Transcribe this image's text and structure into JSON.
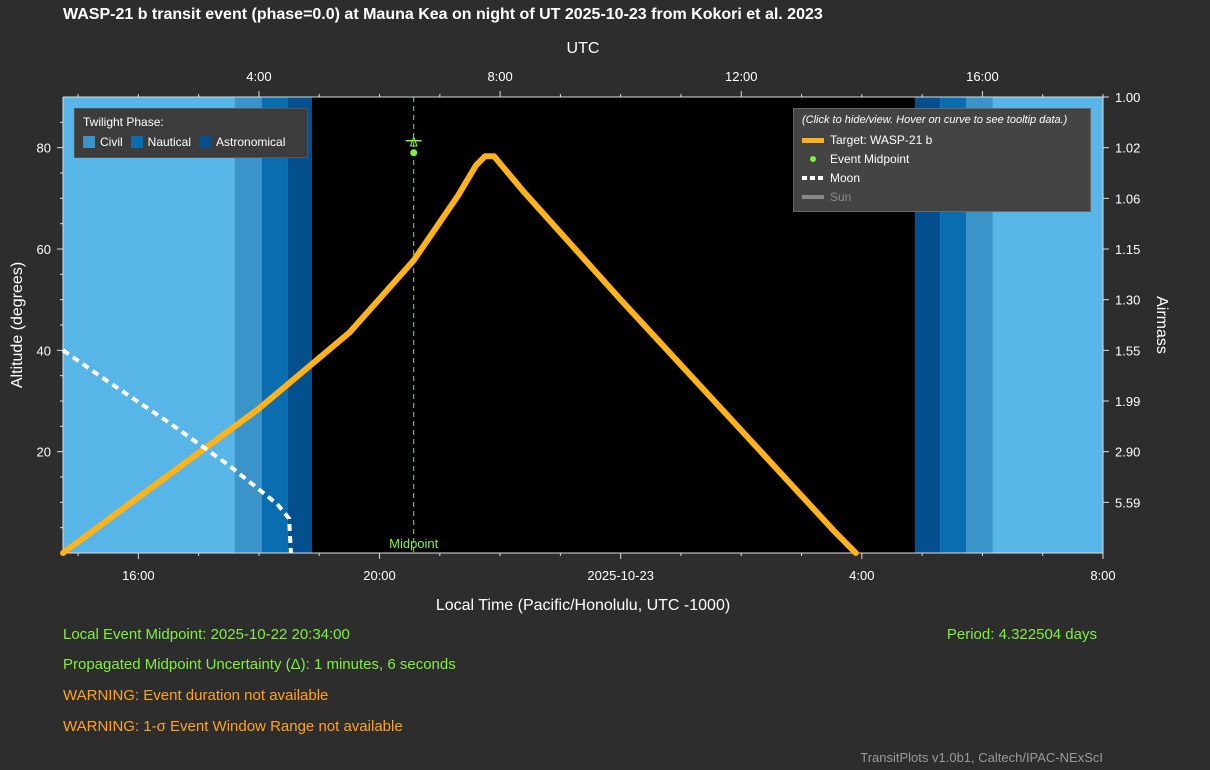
{
  "title": "WASP-21 b transit event (phase=0.0) at Mauna Kea on night of UT 2025-10-23 from Kokori et al. 2023",
  "colors": {
    "civil": "#3a93c9",
    "nautical": "#0a6db0",
    "astronomical": "#04508f",
    "day": "#58b5e8",
    "night": "#000000",
    "target": "#ffb31a",
    "midpoint": "#7ff03c",
    "moon": "#ffffff",
    "sun": "#888888"
  },
  "info": {
    "midpoint": "Local Event Midpoint: 2025-10-22 20:34:00",
    "uncertainty": "Propagated Midpoint Uncertainty (Δ): 1 minutes, 6 seconds",
    "warning_duration": "WARNING: Event duration not available",
    "warning_window": "WARNING: 1-σ Event Window Range not available",
    "period": "Period: 4.322504 days"
  },
  "credit": "TransitPlots v1.0b1, Caltech/IPAC-NExScI",
  "twilight_legend": {
    "title": "Twilight Phase:",
    "civil": "Civil",
    "nautical": "Nautical",
    "astronomical": "Astronomical"
  },
  "curve_legend": {
    "hint": "(Click to hide/view. Hover on curve to see tooltip data.)",
    "target": "Target: WASP-21 b",
    "midpoint": "Event Midpoint",
    "moon": "Moon",
    "sun": "Sun"
  },
  "chart_data": {
    "type": "line",
    "xlabel": "Local Time (Pacific/Honolulu, UTC -1000)",
    "ylabel": "Altitude (degrees)",
    "x2label": "UTC",
    "y2label": "Airmass",
    "x_range_hours": [
      14.75,
      32.0
    ],
    "ylim": [
      0,
      90
    ],
    "x_ticks": [
      {
        "value": 16,
        "label": "16:00"
      },
      {
        "value": 20,
        "label": "20:00"
      },
      {
        "value": 24,
        "label": "2025-10-23"
      },
      {
        "value": 28,
        "label": "4:00"
      },
      {
        "value": 32,
        "label": "8:00"
      }
    ],
    "x2_ticks": [
      {
        "value": 18,
        "label": "4:00"
      },
      {
        "value": 22,
        "label": "8:00"
      },
      {
        "value": 26,
        "label": "12:00"
      },
      {
        "value": 30,
        "label": "16:00"
      }
    ],
    "y_ticks": [
      20,
      40,
      60,
      80
    ],
    "y2_ticks": [
      {
        "alt": 90,
        "label": "1.00"
      },
      {
        "alt": 80,
        "label": "1.02"
      },
      {
        "alt": 70,
        "label": "1.06"
      },
      {
        "alt": 60,
        "label": "1.15"
      },
      {
        "alt": 50,
        "label": "1.30"
      },
      {
        "alt": 40,
        "label": "1.55"
      },
      {
        "alt": 30,
        "label": "1.99"
      },
      {
        "alt": 20,
        "label": "2.90"
      },
      {
        "alt": 10,
        "label": "5.59"
      }
    ],
    "twilight_bands": [
      {
        "phase": "civil",
        "from": 17.6,
        "to": 18.05
      },
      {
        "phase": "nautical",
        "from": 18.05,
        "to": 18.48
      },
      {
        "phase": "astronomical",
        "from": 18.48,
        "to": 18.88
      },
      {
        "phase": "astronomical",
        "from": 28.88,
        "to": 29.3
      },
      {
        "phase": "nautical",
        "from": 29.3,
        "to": 29.73
      },
      {
        "phase": "civil",
        "from": 29.73,
        "to": 30.17
      }
    ],
    "night_range": [
      18.88,
      28.88
    ],
    "series": [
      {
        "name": "Target: WASP-21 b",
        "points": [
          [
            14.75,
            0.0
          ],
          [
            16.0,
            11.0
          ],
          [
            18.0,
            28.5
          ],
          [
            19.5,
            43.5
          ],
          [
            20.57,
            57.8
          ],
          [
            21.3,
            70.5
          ],
          [
            21.6,
            76.5
          ],
          [
            21.75,
            78.3
          ],
          [
            21.9,
            78.3
          ],
          [
            22.4,
            71.2
          ],
          [
            24.0,
            50.0
          ],
          [
            26.0,
            24.2
          ],
          [
            27.55,
            4.2
          ],
          [
            27.9,
            0.0
          ]
        ]
      },
      {
        "name": "Moon",
        "points": [
          [
            14.75,
            40.0
          ],
          [
            15.5,
            33.8
          ],
          [
            16.5,
            25.8
          ],
          [
            17.5,
            17.3
          ],
          [
            18.3,
            9.7
          ],
          [
            18.5,
            6.8
          ],
          [
            18.53,
            0.0
          ]
        ]
      }
    ],
    "midpoint": {
      "x": 20.567,
      "alt": 79.0,
      "label": "Midpoint",
      "marker_label": "Δ"
    }
  }
}
